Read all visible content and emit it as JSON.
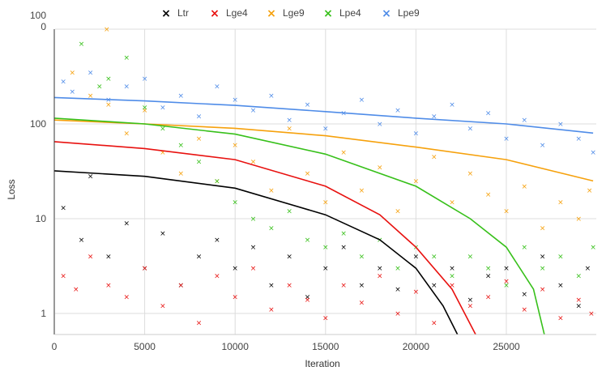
{
  "chart_data": {
    "type": "scatter",
    "title": "",
    "xlabel": "Iteration",
    "ylabel": "Loss",
    "x_scale": "linear",
    "y_scale": "log",
    "xlim": [
      0,
      30000
    ],
    "ylim": [
      0.6,
      1000
    ],
    "x_ticks": [
      {
        "value": 0,
        "label": "0"
      },
      {
        "value": 5000,
        "label": "5000"
      },
      {
        "value": 10000,
        "label": "10000"
      },
      {
        "value": 15000,
        "label": "15000"
      },
      {
        "value": 20000,
        "label": "20000"
      },
      {
        "value": 25000,
        "label": "25000"
      }
    ],
    "y_ticks": [
      {
        "value": 1,
        "label": "1"
      },
      {
        "value": 10,
        "label": "10"
      },
      {
        "value": 100,
        "label": "100"
      },
      {
        "value": 1000,
        "label": "100\n0"
      }
    ],
    "grid": true,
    "legend_position": "top",
    "marker": "×",
    "series": [
      {
        "name": "Ltr",
        "color": "#000000",
        "trend": [
          [
            0,
            32
          ],
          [
            5000,
            28
          ],
          [
            10000,
            21
          ],
          [
            15000,
            11
          ],
          [
            18000,
            6
          ],
          [
            20000,
            3
          ],
          [
            21500,
            1.2
          ],
          [
            22300,
            0.6
          ]
        ],
        "points": [
          [
            500,
            13
          ],
          [
            1500,
            6
          ],
          [
            2000,
            28
          ],
          [
            3000,
            4
          ],
          [
            4000,
            9
          ],
          [
            5000,
            3
          ],
          [
            6000,
            7
          ],
          [
            7000,
            2
          ],
          [
            8000,
            4
          ],
          [
            9000,
            6
          ],
          [
            10000,
            3
          ],
          [
            11000,
            5
          ],
          [
            12000,
            2
          ],
          [
            13000,
            4
          ],
          [
            14000,
            1.5
          ],
          [
            15000,
            3
          ],
          [
            16000,
            5
          ],
          [
            17000,
            2
          ],
          [
            18000,
            3
          ],
          [
            19000,
            1.8
          ],
          [
            20000,
            4
          ],
          [
            21000,
            2
          ],
          [
            22000,
            3
          ],
          [
            23000,
            1.4
          ],
          [
            24000,
            2.5
          ],
          [
            25000,
            3
          ],
          [
            26000,
            1.6
          ],
          [
            27000,
            4
          ],
          [
            28000,
            2
          ],
          [
            29000,
            1.2
          ],
          [
            29500,
            3
          ]
        ]
      },
      {
        "name": "Lge4",
        "color": "#e8110f",
        "trend": [
          [
            0,
            65
          ],
          [
            5000,
            55
          ],
          [
            10000,
            42
          ],
          [
            15000,
            22
          ],
          [
            18000,
            11
          ],
          [
            20000,
            5
          ],
          [
            22000,
            1.8
          ],
          [
            23300,
            0.6
          ]
        ],
        "points": [
          [
            500,
            2.5
          ],
          [
            1200,
            1.8
          ],
          [
            2000,
            4
          ],
          [
            3000,
            2
          ],
          [
            4000,
            1.5
          ],
          [
            5000,
            3
          ],
          [
            6000,
            1.2
          ],
          [
            7000,
            2
          ],
          [
            8000,
            0.8
          ],
          [
            9000,
            2.5
          ],
          [
            10000,
            1.5
          ],
          [
            11000,
            3
          ],
          [
            12000,
            1.1
          ],
          [
            13000,
            2
          ],
          [
            14000,
            1.4
          ],
          [
            15000,
            0.9
          ],
          [
            16000,
            2
          ],
          [
            17000,
            1.3
          ],
          [
            18000,
            2.5
          ],
          [
            19000,
            1
          ],
          [
            20000,
            1.7
          ],
          [
            21000,
            0.8
          ],
          [
            22000,
            2
          ],
          [
            23000,
            1.2
          ],
          [
            24000,
            1.5
          ],
          [
            25000,
            2.2
          ],
          [
            26000,
            1.1
          ],
          [
            27000,
            1.8
          ],
          [
            28000,
            0.9
          ],
          [
            29000,
            1.4
          ],
          [
            29700,
            1
          ]
        ]
      },
      {
        "name": "Lge9",
        "color": "#f6a10c",
        "trend": [
          [
            0,
            110
          ],
          [
            5000,
            100
          ],
          [
            10000,
            90
          ],
          [
            15000,
            75
          ],
          [
            20000,
            57
          ],
          [
            25000,
            42
          ],
          [
            29800,
            25
          ]
        ],
        "points": [
          [
            2900,
            1000
          ],
          [
            1000,
            350
          ],
          [
            2000,
            200
          ],
          [
            3000,
            160
          ],
          [
            4000,
            80
          ],
          [
            5000,
            140
          ],
          [
            6000,
            50
          ],
          [
            7000,
            30
          ],
          [
            8000,
            70
          ],
          [
            9000,
            25
          ],
          [
            10000,
            60
          ],
          [
            11000,
            40
          ],
          [
            12000,
            20
          ],
          [
            13000,
            90
          ],
          [
            14000,
            30
          ],
          [
            15000,
            15
          ],
          [
            16000,
            50
          ],
          [
            17000,
            20
          ],
          [
            18000,
            35
          ],
          [
            19000,
            12
          ],
          [
            20000,
            25
          ],
          [
            21000,
            45
          ],
          [
            22000,
            15
          ],
          [
            23000,
            30
          ],
          [
            24000,
            18
          ],
          [
            25000,
            12
          ],
          [
            26000,
            22
          ],
          [
            27000,
            8
          ],
          [
            28000,
            15
          ],
          [
            29000,
            10
          ],
          [
            29600,
            20
          ]
        ]
      },
      {
        "name": "Lpe4",
        "color": "#37c01a",
        "trend": [
          [
            0,
            115
          ],
          [
            5000,
            100
          ],
          [
            10000,
            78
          ],
          [
            15000,
            48
          ],
          [
            20000,
            22
          ],
          [
            23000,
            10
          ],
          [
            25000,
            5
          ],
          [
            26500,
            1.8
          ],
          [
            27100,
            0.6
          ]
        ],
        "points": [
          [
            1500,
            700
          ],
          [
            3000,
            300
          ],
          [
            4000,
            500
          ],
          [
            2500,
            250
          ],
          [
            5000,
            150
          ],
          [
            6000,
            90
          ],
          [
            7000,
            60
          ],
          [
            8000,
            40
          ],
          [
            9000,
            25
          ],
          [
            10000,
            15
          ],
          [
            11000,
            10
          ],
          [
            12000,
            8
          ],
          [
            13000,
            12
          ],
          [
            14000,
            6
          ],
          [
            15000,
            5
          ],
          [
            16000,
            7
          ],
          [
            17000,
            4
          ],
          [
            18000,
            6
          ],
          [
            19000,
            3
          ],
          [
            20000,
            5
          ],
          [
            21000,
            4
          ],
          [
            22000,
            2.5
          ],
          [
            23000,
            4
          ],
          [
            24000,
            3
          ],
          [
            25000,
            2
          ],
          [
            26000,
            5
          ],
          [
            27000,
            3
          ],
          [
            28000,
            4
          ],
          [
            29000,
            2.5
          ],
          [
            29800,
            5
          ]
        ]
      },
      {
        "name": "Lpe9",
        "color": "#4f8ce8",
        "trend": [
          [
            0,
            190
          ],
          [
            5000,
            175
          ],
          [
            10000,
            157
          ],
          [
            15000,
            135
          ],
          [
            20000,
            115
          ],
          [
            25000,
            100
          ],
          [
            29800,
            80
          ]
        ],
        "points": [
          [
            500,
            280
          ],
          [
            1000,
            220
          ],
          [
            2000,
            350
          ],
          [
            3000,
            180
          ],
          [
            4000,
            250
          ],
          [
            5000,
            300
          ],
          [
            6000,
            150
          ],
          [
            7000,
            200
          ],
          [
            8000,
            120
          ],
          [
            9000,
            250
          ],
          [
            10000,
            180
          ],
          [
            11000,
            140
          ],
          [
            12000,
            200
          ],
          [
            13000,
            110
          ],
          [
            14000,
            160
          ],
          [
            15000,
            90
          ],
          [
            16000,
            130
          ],
          [
            17000,
            180
          ],
          [
            18000,
            100
          ],
          [
            19000,
            140
          ],
          [
            20000,
            80
          ],
          [
            21000,
            120
          ],
          [
            22000,
            160
          ],
          [
            23000,
            90
          ],
          [
            24000,
            130
          ],
          [
            25000,
            70
          ],
          [
            26000,
            110
          ],
          [
            27000,
            60
          ],
          [
            28000,
            100
          ],
          [
            29000,
            70
          ],
          [
            29800,
            50
          ]
        ]
      }
    ]
  }
}
